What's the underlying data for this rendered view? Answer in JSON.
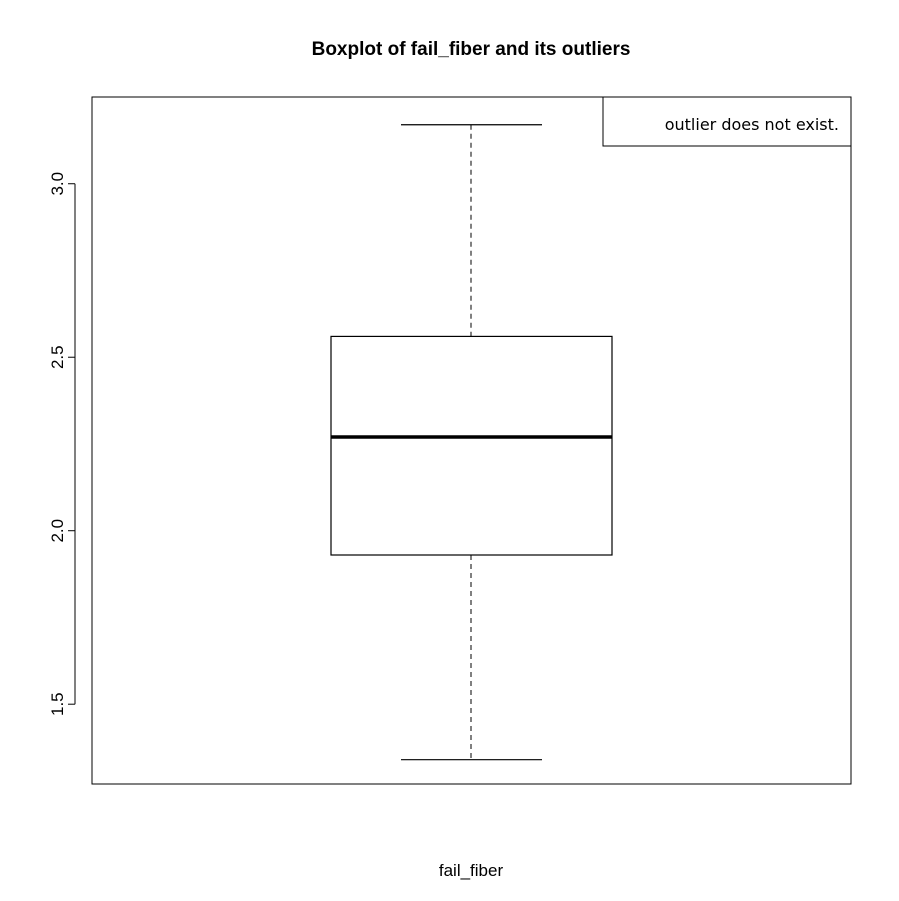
{
  "chart_data": {
    "type": "boxplot",
    "title": "Boxplot of fail_fiber and its outliers",
    "xlabel": "fail_fiber",
    "ylabel": "",
    "ylim": [
      1.27,
      3.25
    ],
    "yticks": [
      1.5,
      2.0,
      2.5,
      3.0
    ],
    "ytick_labels": [
      "1.5",
      "2.0",
      "2.5",
      "3.0"
    ],
    "stats": {
      "min": 1.34,
      "q1": 1.93,
      "median": 2.27,
      "q3": 2.56,
      "max": 3.17
    },
    "outliers": [],
    "legend": {
      "text": "outlier does not exist.",
      "position": "top-right"
    },
    "grid": false
  }
}
